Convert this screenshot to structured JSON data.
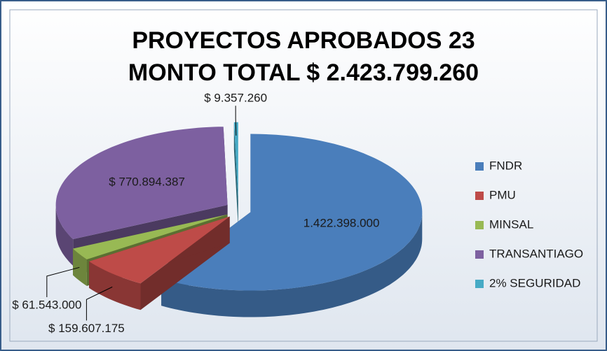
{
  "chart_data": {
    "type": "pie",
    "title": "PROYECTOS APROBADOS 23",
    "subtitle": "MONTO TOTAL $ 2.423.799.260",
    "categories": [
      "FNDR",
      "PMU",
      "MINSAL",
      "TRANSANTIAGO",
      "2% SEGURIDAD"
    ],
    "values": [
      1422398000,
      159607175,
      61543000,
      770894387,
      9357260
    ],
    "value_labels": [
      "1.422.398.000",
      "$ 159.607.175",
      "$ 61.543.000",
      "$ 770.894.387",
      "$ 9.357.260"
    ],
    "colors": [
      "#4a7ebb",
      "#be4b48",
      "#98b954",
      "#7d60a0",
      "#46aac5"
    ],
    "legend": "right"
  }
}
